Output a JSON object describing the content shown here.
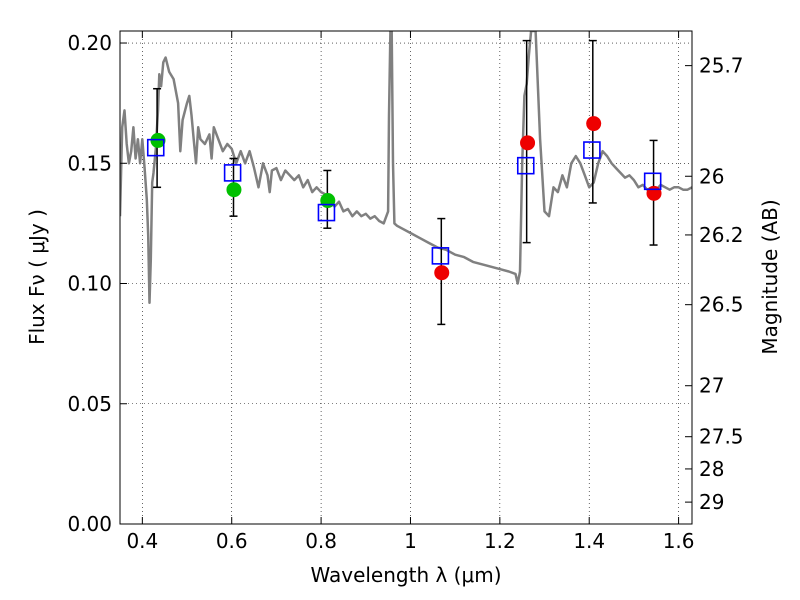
{
  "chart_data": {
    "type": "scatter",
    "xlabel": "Wavelength  λ (μm)",
    "ylabel": "Flux  Fν  ( μJy )",
    "y2label": "Magnitude (AB)",
    "xlim": [
      0.35,
      1.63
    ],
    "ylim": [
      0.0,
      0.205
    ],
    "grid": true,
    "x_ticks": [
      0.4,
      0.6,
      0.8,
      1.0,
      1.2,
      1.4,
      1.6
    ],
    "x_tick_labels": [
      "0.4",
      "0.6",
      "0.8",
      "1",
      "1.2",
      "1.4",
      "1.6"
    ],
    "y_ticks": [
      0.0,
      0.05,
      0.1,
      0.15,
      0.2
    ],
    "y_tick_labels": [
      "0.00",
      "0.05",
      "0.10",
      "0.15",
      "0.20"
    ],
    "y2_ticks": [
      {
        "label": "25.7",
        "flux": 0.1906
      },
      {
        "label": "26",
        "flux": 0.1446
      },
      {
        "label": "26.2",
        "flux": 0.1202
      },
      {
        "label": "26.5",
        "flux": 0.0912
      },
      {
        "label": "27",
        "flux": 0.0575
      },
      {
        "label": "27.5",
        "flux": 0.0363
      },
      {
        "label": "28",
        "flux": 0.0229
      },
      {
        "label": "29",
        "flux": 0.0091
      }
    ],
    "sed_model": {
      "color": "#808080",
      "points": [
        [
          0.35,
          0.128
        ],
        [
          0.355,
          0.165
        ],
        [
          0.36,
          0.172
        ],
        [
          0.365,
          0.158
        ],
        [
          0.37,
          0.15
        ],
        [
          0.375,
          0.155
        ],
        [
          0.38,
          0.165
        ],
        [
          0.385,
          0.152
        ],
        [
          0.39,
          0.16
        ],
        [
          0.395,
          0.15
        ],
        [
          0.4,
          0.16
        ],
        [
          0.405,
          0.148
        ],
        [
          0.41,
          0.135
        ],
        [
          0.413,
          0.12
        ],
        [
          0.416,
          0.092
        ],
        [
          0.419,
          0.11
        ],
        [
          0.422,
          0.142
        ],
        [
          0.425,
          0.146
        ],
        [
          0.43,
          0.156
        ],
        [
          0.435,
          0.172
        ],
        [
          0.438,
          0.187
        ],
        [
          0.442,
          0.182
        ],
        [
          0.447,
          0.192
        ],
        [
          0.452,
          0.194
        ],
        [
          0.46,
          0.188
        ],
        [
          0.47,
          0.185
        ],
        [
          0.48,
          0.175
        ],
        [
          0.485,
          0.155
        ],
        [
          0.49,
          0.168
        ],
        [
          0.5,
          0.175
        ],
        [
          0.505,
          0.178
        ],
        [
          0.51,
          0.17
        ],
        [
          0.515,
          0.16
        ],
        [
          0.52,
          0.15
        ],
        [
          0.525,
          0.165
        ],
        [
          0.53,
          0.16
        ],
        [
          0.54,
          0.158
        ],
        [
          0.55,
          0.162
        ],
        [
          0.555,
          0.152
        ],
        [
          0.56,
          0.165
        ],
        [
          0.57,
          0.16
        ],
        [
          0.58,
          0.155
        ],
        [
          0.59,
          0.158
        ],
        [
          0.6,
          0.156
        ],
        [
          0.61,
          0.15
        ],
        [
          0.62,
          0.155
        ],
        [
          0.63,
          0.15
        ],
        [
          0.64,
          0.155
        ],
        [
          0.65,
          0.148
        ],
        [
          0.66,
          0.14
        ],
        [
          0.67,
          0.15
        ],
        [
          0.68,
          0.145
        ],
        [
          0.685,
          0.138
        ],
        [
          0.69,
          0.147
        ],
        [
          0.7,
          0.148
        ],
        [
          0.71,
          0.143
        ],
        [
          0.72,
          0.147
        ],
        [
          0.73,
          0.145
        ],
        [
          0.74,
          0.143
        ],
        [
          0.75,
          0.145
        ],
        [
          0.76,
          0.14
        ],
        [
          0.77,
          0.143
        ],
        [
          0.78,
          0.138
        ],
        [
          0.79,
          0.14
        ],
        [
          0.8,
          0.138
        ],
        [
          0.81,
          0.137
        ],
        [
          0.82,
          0.135
        ],
        [
          0.83,
          0.132
        ],
        [
          0.84,
          0.134
        ],
        [
          0.85,
          0.13
        ],
        [
          0.86,
          0.131
        ],
        [
          0.87,
          0.128
        ],
        [
          0.88,
          0.13
        ],
        [
          0.89,
          0.128
        ],
        [
          0.9,
          0.129
        ],
        [
          0.91,
          0.127
        ],
        [
          0.92,
          0.128
        ],
        [
          0.93,
          0.126
        ],
        [
          0.94,
          0.125
        ],
        [
          0.95,
          0.13
        ],
        [
          0.952,
          0.17
        ],
        [
          0.955,
          0.205
        ],
        [
          0.958,
          0.205
        ],
        [
          0.961,
          0.15
        ],
        [
          0.964,
          0.125
        ],
        [
          0.97,
          0.124
        ],
        [
          0.98,
          0.123
        ],
        [
          1.0,
          0.121
        ],
        [
          1.02,
          0.119
        ],
        [
          1.04,
          0.117
        ],
        [
          1.06,
          0.115
        ],
        [
          1.08,
          0.114
        ],
        [
          1.1,
          0.112
        ],
        [
          1.12,
          0.111
        ],
        [
          1.14,
          0.109
        ],
        [
          1.16,
          0.108
        ],
        [
          1.18,
          0.107
        ],
        [
          1.2,
          0.106
        ],
        [
          1.22,
          0.105
        ],
        [
          1.235,
          0.104
        ],
        [
          1.24,
          0.1
        ],
        [
          1.245,
          0.105
        ],
        [
          1.25,
          0.15
        ],
        [
          1.255,
          0.178
        ],
        [
          1.26,
          0.183
        ],
        [
          1.265,
          0.195
        ],
        [
          1.27,
          0.205
        ],
        [
          1.28,
          0.205
        ],
        [
          1.29,
          0.16
        ],
        [
          1.3,
          0.13
        ],
        [
          1.31,
          0.128
        ],
        [
          1.32,
          0.14
        ],
        [
          1.33,
          0.138
        ],
        [
          1.34,
          0.145
        ],
        [
          1.35,
          0.14
        ],
        [
          1.36,
          0.15
        ],
        [
          1.37,
          0.153
        ],
        [
          1.38,
          0.15
        ],
        [
          1.39,
          0.145
        ],
        [
          1.4,
          0.14
        ],
        [
          1.41,
          0.142
        ],
        [
          1.42,
          0.15
        ],
        [
          1.43,
          0.155
        ],
        [
          1.44,
          0.153
        ],
        [
          1.45,
          0.15
        ],
        [
          1.46,
          0.148
        ],
        [
          1.47,
          0.146
        ],
        [
          1.48,
          0.144
        ],
        [
          1.49,
          0.145
        ],
        [
          1.5,
          0.143
        ],
        [
          1.51,
          0.14
        ],
        [
          1.52,
          0.141
        ],
        [
          1.53,
          0.139
        ],
        [
          1.54,
          0.14
        ],
        [
          1.55,
          0.139
        ],
        [
          1.56,
          0.141
        ],
        [
          1.57,
          0.14
        ],
        [
          1.58,
          0.139
        ],
        [
          1.59,
          0.14
        ],
        [
          1.6,
          0.14
        ],
        [
          1.61,
          0.139
        ],
        [
          1.62,
          0.139
        ],
        [
          1.63,
          0.14
        ]
      ]
    },
    "series": [
      {
        "marker": "circle",
        "color": "#00c000",
        "x": [
          0.435,
          0.605,
          0.815
        ],
        "y": [
          0.1595,
          0.139,
          0.1345
        ]
      },
      {
        "marker": "circle",
        "color": "#ee0000",
        "x": [
          1.07,
          1.262,
          1.41,
          1.545
        ],
        "y": [
          0.1045,
          0.1585,
          0.1665,
          0.1375
        ]
      },
      {
        "marker": "square",
        "color": "#0000ff",
        "x": [
          0.43,
          0.602,
          0.812,
          1.067,
          1.258,
          1.406,
          1.542
        ],
        "y": [
          0.1565,
          0.146,
          0.1295,
          0.1115,
          0.149,
          0.1555,
          0.1425
        ]
      }
    ],
    "error_bars": {
      "color": "#000000",
      "points": [
        {
          "x": 0.433,
          "low": 0.14,
          "high": 0.181
        },
        {
          "x": 0.604,
          "low": 0.128,
          "high": 0.152
        },
        {
          "x": 0.814,
          "low": 0.123,
          "high": 0.147
        },
        {
          "x": 1.069,
          "low": 0.083,
          "high": 0.127
        },
        {
          "x": 1.26,
          "low": 0.117,
          "high": 0.201
        },
        {
          "x": 1.408,
          "low": 0.1335,
          "high": 0.201
        },
        {
          "x": 1.544,
          "low": 0.116,
          "high": 0.1595
        }
      ]
    }
  }
}
